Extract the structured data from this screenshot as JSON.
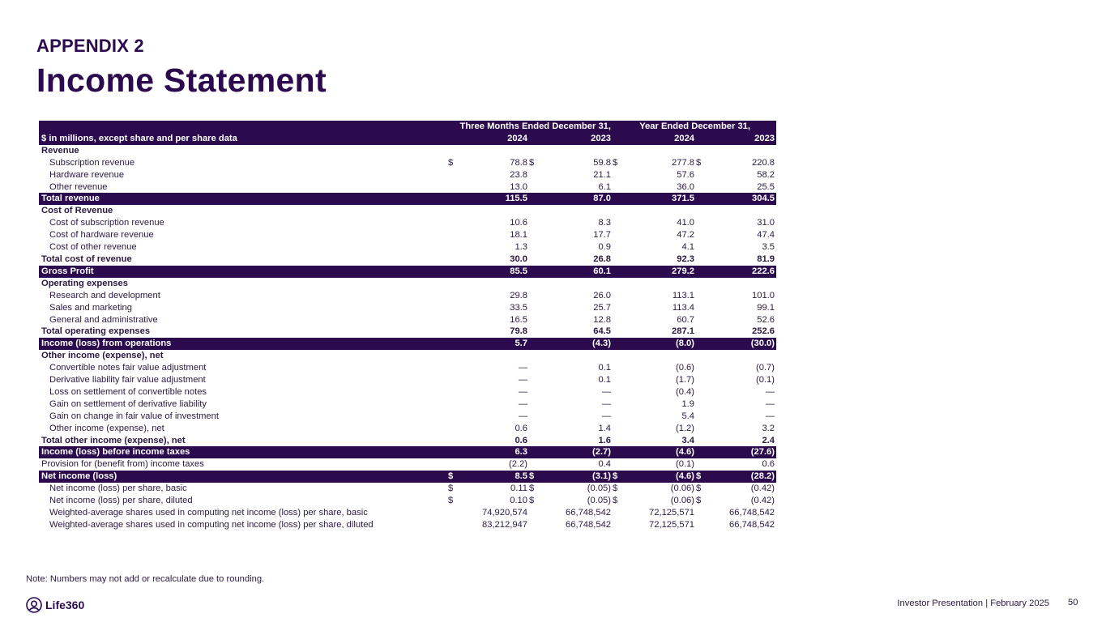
{
  "header": {
    "appendix": "APPENDIX 2",
    "title": "Income Statement"
  },
  "table": {
    "group_three_months": "Three Months Ended December 31,",
    "group_year": "Year Ended December 31,",
    "units_label": "$ in millions, except share and per share data",
    "years": [
      "2024",
      "2023",
      "2024",
      "2023"
    ],
    "rows": [
      {
        "label": "Revenue",
        "style": "section",
        "values": [
          "",
          "",
          "",
          ""
        ]
      },
      {
        "label": "Subscription revenue",
        "style": "indent",
        "values": [
          "78.8",
          "59.8",
          "277.8",
          "220.8"
        ],
        "currency": true
      },
      {
        "label": "Hardware revenue",
        "style": "indent",
        "values": [
          "23.8",
          "21.1",
          "57.6",
          "58.2"
        ]
      },
      {
        "label": "Other revenue",
        "style": "indent",
        "values": [
          "13.0",
          "6.1",
          "36.0",
          "25.5"
        ]
      },
      {
        "label": "Total revenue",
        "style": "highlight",
        "values": [
          "115.5",
          "87.0",
          "371.5",
          "304.5"
        ]
      },
      {
        "label": "Cost of Revenue",
        "style": "section",
        "values": [
          "",
          "",
          "",
          ""
        ]
      },
      {
        "label": "Cost of subscription revenue",
        "style": "indent",
        "values": [
          "10.6",
          "8.3",
          "41.0",
          "31.0"
        ]
      },
      {
        "label": "Cost of hardware revenue",
        "style": "indent",
        "values": [
          "18.1",
          "17.7",
          "47.2",
          "47.4"
        ]
      },
      {
        "label": "Cost of other revenue",
        "style": "indent",
        "values": [
          "1.3",
          "0.9",
          "4.1",
          "3.5"
        ]
      },
      {
        "label": "Total cost of revenue",
        "style": "bold",
        "values": [
          "30.0",
          "26.8",
          "92.3",
          "81.9"
        ]
      },
      {
        "label": "Gross Profit",
        "style": "highlight",
        "values": [
          "85.5",
          "60.1",
          "279.2",
          "222.6"
        ]
      },
      {
        "label": "Operating expenses",
        "style": "section",
        "values": [
          "",
          "",
          "",
          ""
        ]
      },
      {
        "label": "Research and development",
        "style": "indent",
        "values": [
          "29.8",
          "26.0",
          "113.1",
          "101.0"
        ]
      },
      {
        "label": "Sales and marketing",
        "style": "indent",
        "values": [
          "33.5",
          "25.7",
          "113.4",
          "99.1"
        ]
      },
      {
        "label": "General and administrative",
        "style": "indent",
        "values": [
          "16.5",
          "12.8",
          "60.7",
          "52.6"
        ]
      },
      {
        "label": "Total operating expenses",
        "style": "bold",
        "values": [
          "79.8",
          "64.5",
          "287.1",
          "252.6"
        ]
      },
      {
        "label": "Income (loss) from operations",
        "style": "highlight",
        "values": [
          "5.7",
          "(4.3)",
          "(8.0)",
          "(30.0)"
        ]
      },
      {
        "label": "Other income (expense), net",
        "style": "section",
        "values": [
          "",
          "",
          "",
          ""
        ]
      },
      {
        "label": "Convertible notes fair value adjustment",
        "style": "indent",
        "values": [
          "—",
          "0.1",
          "(0.6)",
          "(0.7)"
        ]
      },
      {
        "label": "Derivative liability fair value adjustment",
        "style": "indent",
        "values": [
          "—",
          "0.1",
          "(1.7)",
          "(0.1)"
        ]
      },
      {
        "label": "Loss on settlement of convertible notes",
        "style": "indent",
        "values": [
          "—",
          "—",
          "(0.4)",
          "—"
        ]
      },
      {
        "label": "Gain on settlement of derivative liability",
        "style": "indent",
        "values": [
          "—",
          "—",
          "1.9",
          "—"
        ]
      },
      {
        "label": "Gain on change in fair value of investment",
        "style": "indent",
        "values": [
          "—",
          "—",
          "5.4",
          "—"
        ]
      },
      {
        "label": "Other income (expense), net",
        "style": "indent",
        "values": [
          "0.6",
          "1.4",
          "(1.2)",
          "3.2"
        ]
      },
      {
        "label": "Total other income (expense), net",
        "style": "bold",
        "values": [
          "0.6",
          "1.6",
          "3.4",
          "2.4"
        ]
      },
      {
        "label": "Income (loss) before income taxes",
        "style": "highlight",
        "values": [
          "6.3",
          "(2.7)",
          "(4.6)",
          "(27.6)"
        ]
      },
      {
        "label": "Provision for (benefit from) income taxes",
        "style": "plain",
        "values": [
          "(2.2)",
          "0.4",
          "(0.1)",
          "0.6"
        ]
      },
      {
        "label": "Net income (loss)",
        "style": "highlight",
        "values": [
          "8.5",
          "(3.1)",
          "(4.6)",
          "(28.2)"
        ],
        "currency": true
      },
      {
        "label": "Net income (loss) per share, basic",
        "style": "indent",
        "values": [
          "0.11",
          "(0.05)",
          "(0.06)",
          "(0.42)"
        ],
        "currency": true
      },
      {
        "label": "Net income (loss) per share, diluted",
        "style": "indent",
        "values": [
          "0.10",
          "(0.05)",
          "(0.06)",
          "(0.42)"
        ],
        "currency": true
      },
      {
        "label": "Weighted-average shares used in computing net income (loss) per share, basic",
        "style": "indent",
        "values": [
          "74,920,574",
          "66,748,542",
          "72,125,571",
          "66,748,542"
        ]
      },
      {
        "label": "Weighted-average shares used in computing net income (loss) per share, diluted",
        "style": "indent",
        "values": [
          "83,212,947",
          "66,748,542",
          "72,125,571",
          "66,748,542"
        ]
      }
    ],
    "currency_symbol": "$"
  },
  "note": "Note: Numbers may not add or recalculate due to rounding.",
  "footer": {
    "logo_text": "Life360",
    "presentation": "Investor Presentation  | February 2025",
    "page_number": "50"
  },
  "colors": {
    "primary": "#2b0a4e",
    "text": "#2a1a3f",
    "background": "#ffffff"
  }
}
